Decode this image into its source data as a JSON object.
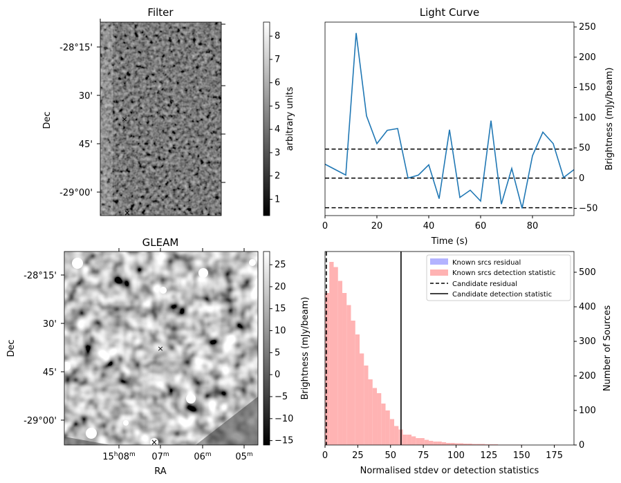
{
  "panels": {
    "filter": {
      "title": "Filter",
      "ylabel": "Dec",
      "yticks": [
        "-28°15'",
        "30'",
        "45'",
        "-29°00'"
      ],
      "colorbar": {
        "label": "arbitrary units",
        "ticks": [
          "1",
          "2",
          "3",
          "4",
          "5",
          "6",
          "7",
          "8"
        ],
        "range": [
          0.3,
          8.6
        ]
      },
      "colormap": "gray"
    },
    "gleam": {
      "title": "GLEAM",
      "ylabel": "Dec",
      "xlabel": "RA",
      "yticks": [
        "-28°15'",
        "30'",
        "45'",
        "-29°00'"
      ],
      "xticks": [
        {
          "main": "15",
          "sup1": "h",
          "mid": "08",
          "sup2": "m"
        },
        {
          "main": "",
          "sup1": "",
          "mid": "07",
          "sup2": "m"
        },
        {
          "main": "",
          "sup1": "",
          "mid": "06",
          "sup2": "m"
        },
        {
          "main": "",
          "sup1": "",
          "mid": "05",
          "sup2": "m"
        }
      ],
      "colorbar": {
        "label": "Brightness (mJy/beam)",
        "ticks": [
          "25",
          "20",
          "15",
          "10",
          "5",
          "0",
          "−5",
          "−10",
          "−15"
        ],
        "range": [
          -16,
          28
        ]
      },
      "colormap": "gray"
    },
    "markers": {
      "candidate_color": "#ff0000",
      "known_color": "#0000ff",
      "symbol": "×"
    }
  },
  "chart_data": [
    {
      "type": "line",
      "title": "Light Curve",
      "xlabel": "Time (s)",
      "ylabel": "Brightness (mJy/beam)",
      "xlim": [
        0,
        96
      ],
      "ylim": [
        -62,
        258
      ],
      "xticks": [
        0,
        20,
        40,
        60,
        80
      ],
      "yticks": [
        -50,
        0,
        50,
        100,
        150,
        200,
        250
      ],
      "series": [
        {
          "name": "light curve",
          "color": "#1f77b4",
          "x": [
            0,
            4,
            8,
            12,
            16,
            20,
            24,
            28,
            32,
            36,
            40,
            44,
            48,
            52,
            56,
            60,
            64,
            68,
            72,
            76,
            80,
            84,
            88,
            92,
            96
          ],
          "y": [
            23,
            14,
            5,
            240,
            103,
            57,
            79,
            82,
            0,
            5,
            22,
            -34,
            80,
            -32,
            -20,
            -38,
            95,
            -43,
            16,
            -50,
            37,
            76,
            57,
            1,
            14
          ]
        }
      ],
      "hlines": [
        {
          "y": 48,
          "style": "dashed"
        },
        {
          "y": 0,
          "style": "dashed"
        },
        {
          "y": -49,
          "style": "dashed"
        }
      ]
    },
    {
      "type": "bar",
      "title": "",
      "xlabel": "Normalised stdev or detection statistics",
      "ylabel": "Number of Sources",
      "xlim": [
        0,
        190
      ],
      "ylim": [
        0,
        560
      ],
      "xticks": [
        0,
        25,
        50,
        75,
        100,
        125,
        150,
        175
      ],
      "yticks": [
        0,
        100,
        200,
        300,
        400,
        500
      ],
      "bin_width": 3.3,
      "series": [
        {
          "name": "Known srcs residual",
          "color": "#b3b3ff",
          "values": []
        },
        {
          "name": "Known srcs detection statistic",
          "color": "#ffb3b3",
          "bin_edges_start": 0,
          "values": [
            440,
            530,
            515,
            475,
            440,
            405,
            360,
            320,
            265,
            230,
            190,
            165,
            150,
            120,
            100,
            75,
            55,
            45,
            30,
            30,
            25,
            20,
            20,
            15,
            12,
            10,
            10,
            8,
            6,
            6,
            5,
            5,
            4,
            4,
            3,
            3,
            3,
            2,
            2,
            2,
            1,
            1,
            1,
            1,
            1,
            1,
            0,
            0,
            0,
            0,
            0,
            0,
            0,
            1
          ]
        }
      ],
      "vlines": [
        {
          "name": "Candidate residual",
          "x": 1,
          "style": "dashed"
        },
        {
          "name": "Candidate detection statistic",
          "x": 58,
          "style": "solid"
        }
      ],
      "legend": {
        "placement": "top-right",
        "entries": [
          "Known srcs residual",
          "Known srcs detection statistic",
          "Candidate residual",
          "Candidate detection statistic"
        ]
      }
    }
  ]
}
